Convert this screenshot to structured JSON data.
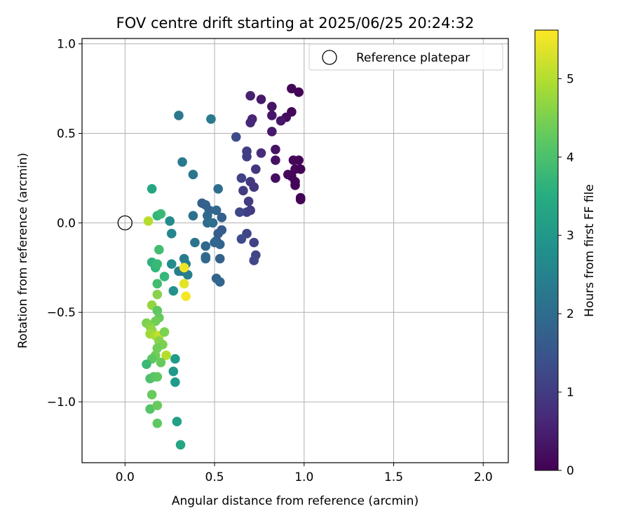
{
  "chart_data": {
    "type": "scatter",
    "title": "FOV centre drift starting at 2025/06/25 20:24:32",
    "xlabel": "Angular distance from reference (arcmin)",
    "ylabel": "Rotation from reference (arcmin)",
    "xlim": [
      -0.24,
      2.14
    ],
    "ylim": [
      -1.34,
      1.03
    ],
    "xticks": [
      0.0,
      0.5,
      1.0,
      1.5,
      2.0
    ],
    "xtick_labels": [
      "0.0",
      "0.5",
      "1.0",
      "1.5",
      "2.0"
    ],
    "yticks": [
      -1.0,
      -0.5,
      0.0,
      0.5,
      1.0
    ],
    "ytick_labels": [
      "−1.0",
      "−0.5",
      "0.0",
      "0.5",
      "1.0"
    ],
    "grid": true,
    "colormap": "viridis",
    "colorbar": {
      "label": "Hours from first FF file",
      "range": [
        0,
        5.62
      ],
      "ticks": [
        0,
        1,
        2,
        3,
        4,
        5
      ],
      "tick_labels": [
        "0",
        "1",
        "2",
        "3",
        "4",
        "5"
      ]
    },
    "reference": {
      "name": "Reference platepar",
      "x": 0.0,
      "y": 0.0
    },
    "legend": {
      "position": "top-right",
      "entries": [
        "Reference platepar"
      ]
    },
    "points": [
      {
        "x": 0.93,
        "y": 0.75,
        "t": 0.05
      },
      {
        "x": 0.97,
        "y": 0.73,
        "t": 0.03
      },
      {
        "x": 0.93,
        "y": 0.62,
        "t": 0.1
      },
      {
        "x": 0.9,
        "y": 0.59,
        "t": 0.2
      },
      {
        "x": 0.87,
        "y": 0.57,
        "t": 0.35
      },
      {
        "x": 0.94,
        "y": 0.35,
        "t": 0.1
      },
      {
        "x": 0.97,
        "y": 0.35,
        "t": 0.05
      },
      {
        "x": 0.95,
        "y": 0.3,
        "t": 0.08
      },
      {
        "x": 0.98,
        "y": 0.3,
        "t": 0.04
      },
      {
        "x": 0.91,
        "y": 0.27,
        "t": 0.12
      },
      {
        "x": 0.93,
        "y": 0.26,
        "t": 0.1
      },
      {
        "x": 0.95,
        "y": 0.23,
        "t": 0.07
      },
      {
        "x": 0.95,
        "y": 0.21,
        "t": 0.05
      },
      {
        "x": 0.98,
        "y": 0.14,
        "t": 0.03
      },
      {
        "x": 0.98,
        "y": 0.13,
        "t": 0.02
      },
      {
        "x": 0.84,
        "y": 0.25,
        "t": 0.2
      },
      {
        "x": 0.84,
        "y": 0.35,
        "t": 0.25
      },
      {
        "x": 0.84,
        "y": 0.41,
        "t": 0.3
      },
      {
        "x": 0.82,
        "y": 0.65,
        "t": 0.3
      },
      {
        "x": 0.82,
        "y": 0.6,
        "t": 0.35
      },
      {
        "x": 0.82,
        "y": 0.51,
        "t": 0.4
      },
      {
        "x": 0.76,
        "y": 0.69,
        "t": 0.4
      },
      {
        "x": 0.7,
        "y": 0.71,
        "t": 0.5
      },
      {
        "x": 0.71,
        "y": 0.58,
        "t": 0.6
      },
      {
        "x": 0.7,
        "y": 0.56,
        "t": 0.65
      },
      {
        "x": 0.76,
        "y": 0.39,
        "t": 0.7
      },
      {
        "x": 0.73,
        "y": 0.3,
        "t": 0.9
      },
      {
        "x": 0.68,
        "y": 0.4,
        "t": 1.0
      },
      {
        "x": 0.68,
        "y": 0.37,
        "t": 1.05
      },
      {
        "x": 0.62,
        "y": 0.48,
        "t": 1.3
      },
      {
        "x": 0.65,
        "y": 0.25,
        "t": 1.1
      },
      {
        "x": 0.7,
        "y": 0.23,
        "t": 0.95
      },
      {
        "x": 0.72,
        "y": 0.2,
        "t": 0.9
      },
      {
        "x": 0.66,
        "y": 0.18,
        "t": 1.0
      },
      {
        "x": 0.69,
        "y": 0.12,
        "t": 1.0
      },
      {
        "x": 0.7,
        "y": 0.07,
        "t": 0.95
      },
      {
        "x": 0.68,
        "y": 0.06,
        "t": 1.05
      },
      {
        "x": 0.64,
        "y": 0.06,
        "t": 1.2
      },
      {
        "x": 0.68,
        "y": -0.06,
        "t": 1.15
      },
      {
        "x": 0.65,
        "y": -0.09,
        "t": 1.25
      },
      {
        "x": 0.72,
        "y": -0.11,
        "t": 1.1
      },
      {
        "x": 0.73,
        "y": -0.18,
        "t": 1.15
      },
      {
        "x": 0.72,
        "y": -0.21,
        "t": 1.2
      },
      {
        "x": 0.3,
        "y": 0.6,
        "t": 2.25
      },
      {
        "x": 0.48,
        "y": 0.58,
        "t": 2.3
      },
      {
        "x": 0.32,
        "y": 0.34,
        "t": 2.3
      },
      {
        "x": 0.38,
        "y": 0.27,
        "t": 2.2
      },
      {
        "x": 0.52,
        "y": 0.19,
        "t": 2.0
      },
      {
        "x": 0.43,
        "y": 0.11,
        "t": 1.7
      },
      {
        "x": 0.45,
        "y": 0.1,
        "t": 1.75
      },
      {
        "x": 0.47,
        "y": 0.07,
        "t": 1.8
      },
      {
        "x": 0.51,
        "y": 0.07,
        "t": 1.85
      },
      {
        "x": 0.46,
        "y": 0.04,
        "t": 1.9
      },
      {
        "x": 0.54,
        "y": 0.03,
        "t": 1.7
      },
      {
        "x": 0.46,
        "y": 0.0,
        "t": 1.95
      },
      {
        "x": 0.49,
        "y": 0.0,
        "t": 2.05
      },
      {
        "x": 0.38,
        "y": 0.04,
        "t": 2.1
      },
      {
        "x": 0.54,
        "y": -0.04,
        "t": 1.6
      },
      {
        "x": 0.52,
        "y": -0.06,
        "t": 1.65
      },
      {
        "x": 0.51,
        "y": -0.1,
        "t": 1.7
      },
      {
        "x": 0.53,
        "y": -0.12,
        "t": 1.8
      },
      {
        "x": 0.5,
        "y": -0.11,
        "t": 1.85
      },
      {
        "x": 0.45,
        "y": -0.13,
        "t": 1.9
      },
      {
        "x": 0.53,
        "y": -0.2,
        "t": 1.75
      },
      {
        "x": 0.45,
        "y": -0.19,
        "t": 1.95
      },
      {
        "x": 0.45,
        "y": -0.2,
        "t": 1.9
      },
      {
        "x": 0.51,
        "y": -0.31,
        "t": 1.8
      },
      {
        "x": 0.53,
        "y": -0.33,
        "t": 1.85
      },
      {
        "x": 0.39,
        "y": -0.11,
        "t": 2.15
      },
      {
        "x": 0.33,
        "y": -0.2,
        "t": 2.35
      },
      {
        "x": 0.34,
        "y": -0.23,
        "t": 2.4
      },
      {
        "x": 0.3,
        "y": -0.27,
        "t": 2.45
      },
      {
        "x": 0.32,
        "y": -0.27,
        "t": 2.3
      },
      {
        "x": 0.35,
        "y": -0.29,
        "t": 2.4
      },
      {
        "x": 0.26,
        "y": -0.06,
        "t": 2.6
      },
      {
        "x": 0.25,
        "y": 0.01,
        "t": 2.7
      },
      {
        "x": 0.26,
        "y": -0.23,
        "t": 2.75
      },
      {
        "x": 0.27,
        "y": -0.38,
        "t": 2.85
      },
      {
        "x": 0.15,
        "y": 0.19,
        "t": 3.3
      },
      {
        "x": 0.18,
        "y": 0.04,
        "t": 3.7
      },
      {
        "x": 0.2,
        "y": 0.05,
        "t": 3.8
      },
      {
        "x": 0.19,
        "y": -0.15,
        "t": 3.9
      },
      {
        "x": 0.15,
        "y": -0.22,
        "t": 3.6
      },
      {
        "x": 0.17,
        "y": -0.25,
        "t": 3.7
      },
      {
        "x": 0.18,
        "y": -0.23,
        "t": 3.8
      },
      {
        "x": 0.22,
        "y": -0.3,
        "t": 3.75
      },
      {
        "x": 0.18,
        "y": -0.34,
        "t": 3.9
      },
      {
        "x": 0.18,
        "y": -0.4,
        "t": 4.6
      },
      {
        "x": 0.15,
        "y": -0.46,
        "t": 4.7
      },
      {
        "x": 0.18,
        "y": -0.49,
        "t": 4.2
      },
      {
        "x": 0.19,
        "y": -0.53,
        "t": 4.3
      },
      {
        "x": 0.17,
        "y": -0.55,
        "t": 4.4
      },
      {
        "x": 0.12,
        "y": -0.56,
        "t": 4.5
      },
      {
        "x": 0.14,
        "y": -0.58,
        "t": 4.6
      },
      {
        "x": 0.15,
        "y": -0.6,
        "t": 4.7
      },
      {
        "x": 0.14,
        "y": -0.62,
        "t": 4.8
      },
      {
        "x": 0.17,
        "y": -0.63,
        "t": 4.9
      },
      {
        "x": 0.19,
        "y": -0.63,
        "t": 5.1
      },
      {
        "x": 0.22,
        "y": -0.61,
        "t": 4.5
      },
      {
        "x": 0.19,
        "y": -0.66,
        "t": 4.6
      },
      {
        "x": 0.21,
        "y": -0.68,
        "t": 4.5
      },
      {
        "x": 0.18,
        "y": -0.7,
        "t": 4.4
      },
      {
        "x": 0.17,
        "y": -0.74,
        "t": 4.4
      },
      {
        "x": 0.23,
        "y": -0.74,
        "t": 5.0
      },
      {
        "x": 0.15,
        "y": -0.76,
        "t": 4.2
      },
      {
        "x": 0.2,
        "y": -0.78,
        "t": 4.3
      },
      {
        "x": 0.12,
        "y": -0.79,
        "t": 3.8
      },
      {
        "x": 0.14,
        "y": -0.87,
        "t": 4.0
      },
      {
        "x": 0.16,
        "y": -0.86,
        "t": 4.1
      },
      {
        "x": 0.18,
        "y": -0.86,
        "t": 4.2
      },
      {
        "x": 0.15,
        "y": -0.96,
        "t": 4.3
      },
      {
        "x": 0.14,
        "y": -1.04,
        "t": 4.1
      },
      {
        "x": 0.18,
        "y": -1.02,
        "t": 4.3
      },
      {
        "x": 0.18,
        "y": -1.12,
        "t": 4.2
      },
      {
        "x": 0.28,
        "y": -0.76,
        "t": 3.1
      },
      {
        "x": 0.27,
        "y": -0.83,
        "t": 3.0
      },
      {
        "x": 0.28,
        "y": -0.89,
        "t": 3.05
      },
      {
        "x": 0.29,
        "y": -1.11,
        "t": 3.2
      },
      {
        "x": 0.31,
        "y": -1.24,
        "t": 3.3
      },
      {
        "x": 0.13,
        "y": 0.01,
        "t": 5.0
      },
      {
        "x": 0.33,
        "y": -0.25,
        "t": 5.5
      },
      {
        "x": 0.33,
        "y": -0.34,
        "t": 5.4
      },
      {
        "x": 0.34,
        "y": -0.41,
        "t": 5.55
      }
    ]
  }
}
